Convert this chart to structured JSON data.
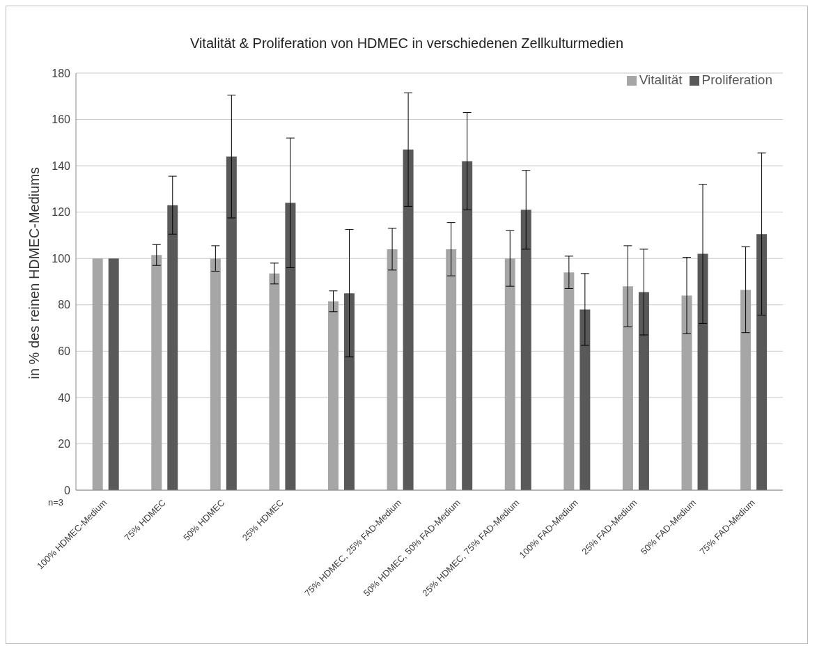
{
  "chart_data": {
    "type": "bar",
    "title": "Vitalität & Proliferation von HDMEC in verschiedenen Zellkulturmedien",
    "ylabel": "in % des reinen HDMEC-Mediums",
    "categories": [
      "100% HDMEC-Medium",
      "75% HDMEC",
      "50% HDMEC",
      "25% HDMEC",
      null,
      "75% HDMEC, 25% FAD-Medium",
      "50% HDMEC, 50% FAD-Medium",
      "25% HDMEC, 75% FAD-Medium",
      "100% FAD-Medium",
      "25% FAD-Medium",
      "50% FAD-Medium",
      "75% FAD-Medium"
    ],
    "series": [
      {
        "name": "Vitalität",
        "color": "#a6a6a6",
        "values": [
          100,
          101.5,
          100,
          93.5,
          81.5,
          104,
          104,
          100,
          94,
          88,
          84,
          86.5
        ],
        "errors": [
          null,
          4.5,
          5.5,
          4.5,
          4.5,
          9,
          11.5,
          12,
          7,
          17.5,
          16.5,
          18.5
        ]
      },
      {
        "name": "Proliferation",
        "color": "#595959",
        "values": [
          100,
          123,
          144,
          124,
          85,
          147,
          142,
          121,
          78,
          85.5,
          102,
          110.5
        ],
        "errors": [
          null,
          12.5,
          26.5,
          28,
          27.5,
          24.5,
          21,
          17,
          15.5,
          18.5,
          30,
          35
        ]
      }
    ],
    "ylim": [
      0,
      180
    ],
    "yticks": [
      0,
      20,
      40,
      60,
      80,
      100,
      120,
      140,
      160,
      180
    ],
    "grid": "y",
    "legend": "top right",
    "annotations": [
      "n=3"
    ]
  }
}
